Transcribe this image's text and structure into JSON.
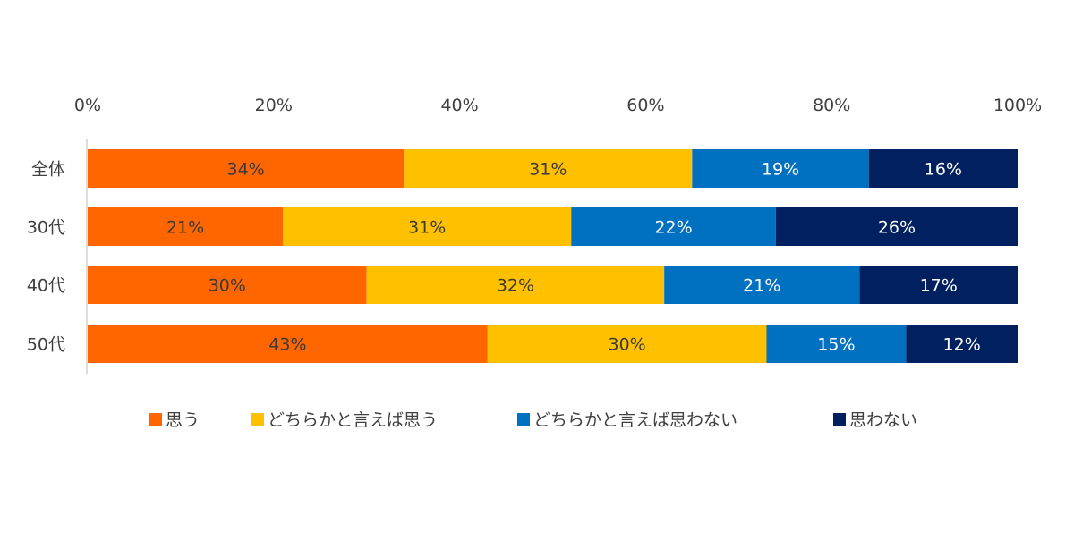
{
  "chart_data": {
    "type": "bar",
    "orientation": "horizontal",
    "stacked": true,
    "categories": [
      "全体",
      "30代",
      "40代",
      "50代"
    ],
    "series": [
      {
        "name": "思う",
        "values": [
          34,
          21,
          30,
          43
        ],
        "labels": [
          "34%",
          "21%",
          "30%",
          "43%"
        ],
        "color": "#FF6600",
        "label_color": "#3a3a3a"
      },
      {
        "name": "どちらかと言えば思う",
        "values": [
          31,
          31,
          32,
          30
        ],
        "labels": [
          "31%",
          "31%",
          "32%",
          "30%"
        ],
        "color": "#FFC000",
        "label_color": "#3a3a3a"
      },
      {
        "name": "どちらかと言えば思わない",
        "values": [
          19,
          22,
          21,
          15
        ],
        "labels": [
          "19%",
          "22%",
          "21%",
          "15%"
        ],
        "color": "#0070C0",
        "label_color": "#ffffff"
      },
      {
        "name": "思わない",
        "values": [
          16,
          26,
          17,
          12
        ],
        "labels": [
          "16%",
          "26%",
          "17%",
          "12%"
        ],
        "color": "#002060",
        "label_color": "#ffffff"
      }
    ],
    "x_axis": {
      "range": [
        0,
        100
      ],
      "ticks": [
        0,
        20,
        40,
        60,
        80,
        100
      ],
      "tick_labels": [
        "0%",
        "20%",
        "40%",
        "60%",
        "80%",
        "100%"
      ],
      "position": "top"
    },
    "grid": false,
    "legend_position": "bottom",
    "title": "",
    "xlabel": "",
    "ylabel": ""
  }
}
